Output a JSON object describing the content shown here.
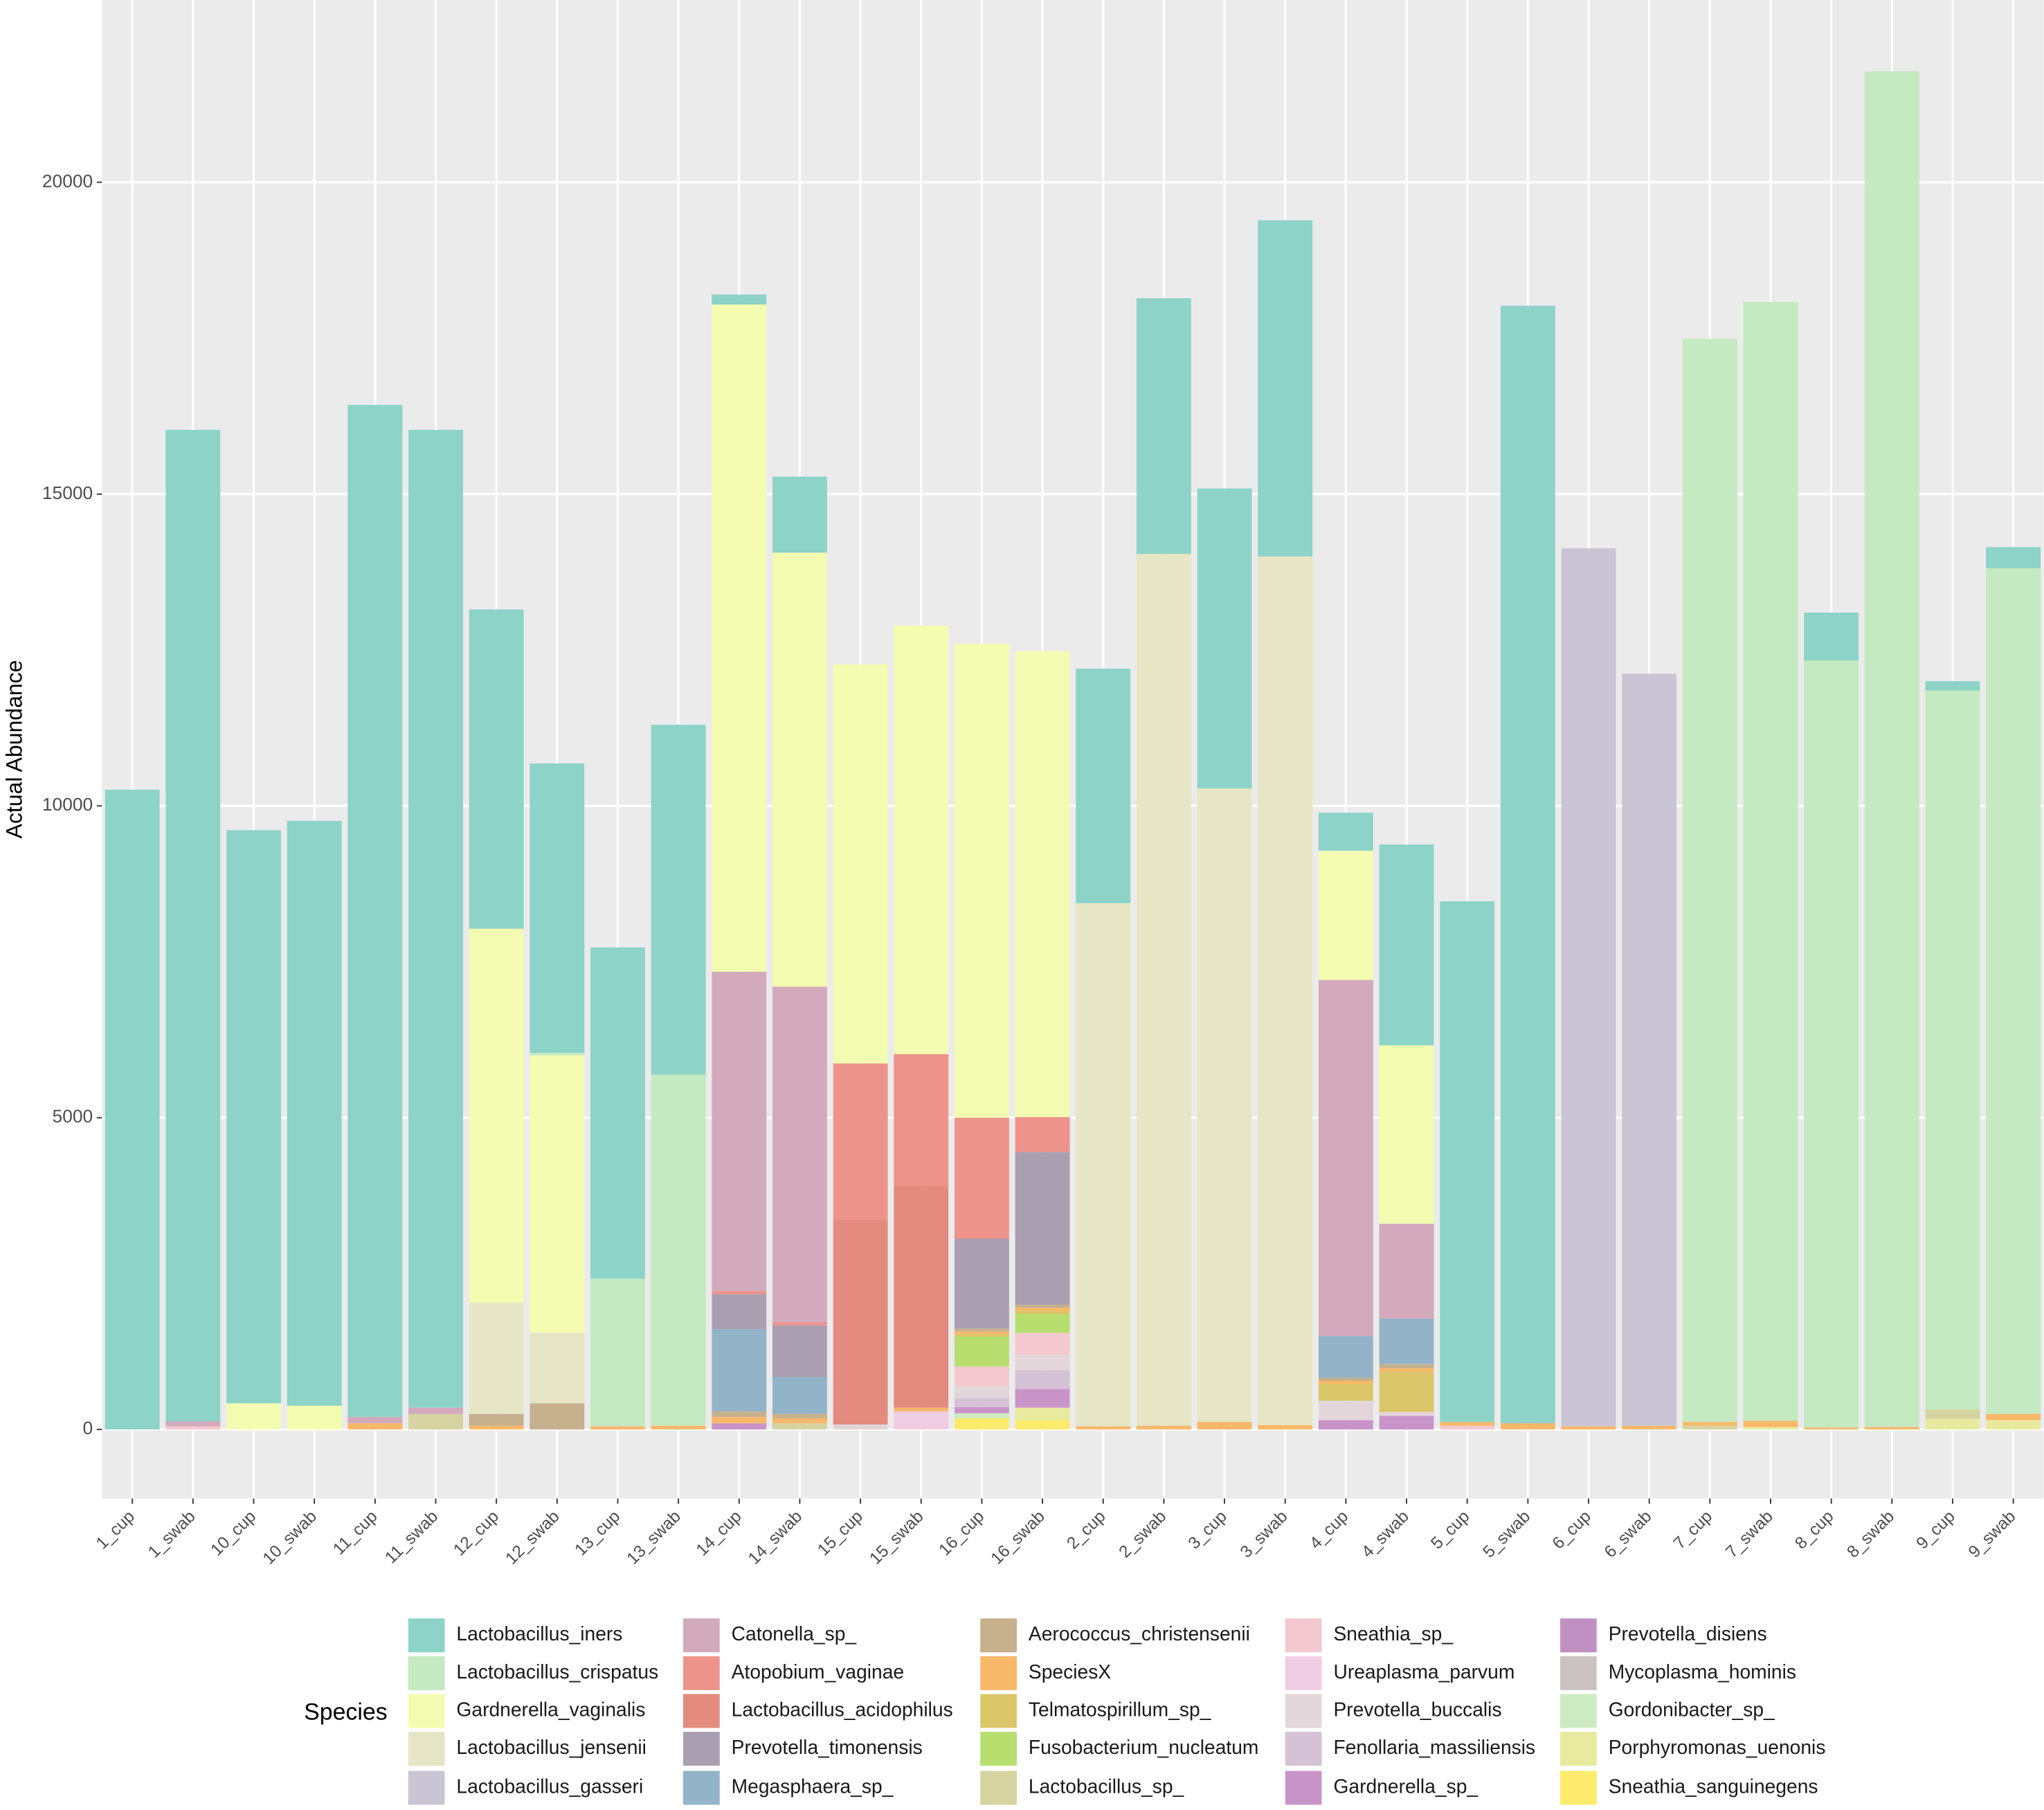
{
  "chart_data": {
    "type": "stacked_bar",
    "ylabel": "Actual Abundance",
    "legend_title": "Species",
    "ylim": [
      -1108,
      22923
    ],
    "yticks": [
      0,
      5000,
      10000,
      15000,
      20000
    ],
    "grid": true,
    "categories": [
      "1_cup",
      "1_swab",
      "10_cup",
      "10_swab",
      "11_cup",
      "11_swab",
      "12_cup",
      "12_swab",
      "13_cup",
      "13_swab",
      "14_cup",
      "14_swab",
      "15_cup",
      "15_swab",
      "16_cup",
      "16_swab",
      "2_cup",
      "2_swab",
      "3_cup",
      "3_swab",
      "4_cup",
      "4_swab",
      "5_cup",
      "5_swab",
      "6_cup",
      "6_swab",
      "7_cup",
      "7_swab",
      "8_cup",
      "8_swab",
      "9_cup",
      "9_swab"
    ],
    "series": [
      {
        "name": "Lactobacillus_iners",
        "color": "#8dd3c7",
        "values": [
          10260,
          15900,
          9190,
          9380,
          16230,
          15680,
          5120,
          4640,
          5310,
          5610,
          160,
          1220,
          0,
          0,
          0,
          0,
          3760,
          4100,
          4810,
          5390,
          610,
          3220,
          8350,
          17920,
          0,
          0,
          0,
          0,
          770,
          0,
          150,
          340
        ]
      },
      {
        "name": "Lactobacillus_crispatus",
        "color": "#c5e9c0",
        "values": [
          0,
          0,
          0,
          0,
          0,
          0,
          0,
          40,
          2370,
          5630,
          0,
          0,
          0,
          0,
          0,
          0,
          0,
          0,
          0,
          0,
          0,
          0,
          0,
          0,
          0,
          0,
          17370,
          17940,
          12300,
          21740,
          11530,
          13560
        ]
      },
      {
        "name": "Gardnerella_vaginalis",
        "color": "#f3fcb1",
        "values": [
          0,
          0,
          420,
          380,
          0,
          0,
          6000,
          4450,
          0,
          0,
          10700,
          6960,
          6400,
          6870,
          7600,
          7470,
          0,
          0,
          0,
          0,
          2070,
          2860,
          0,
          0,
          0,
          0,
          0,
          0,
          0,
          0,
          0,
          0
        ]
      },
      {
        "name": "Lactobacillus_jensenii",
        "color": "#e6e5c5",
        "values": [
          0,
          0,
          0,
          0,
          0,
          0,
          1780,
          1130,
          0,
          0,
          0,
          0,
          0,
          0,
          0,
          0,
          8390,
          13980,
          10160,
          13930,
          0,
          0,
          0,
          0,
          0,
          0,
          0,
          0,
          0,
          0,
          0,
          0
        ]
      },
      {
        "name": "Lactobacillus_gasseri",
        "color": "#c9c5d5",
        "values": [
          0,
          0,
          0,
          0,
          0,
          0,
          0,
          0,
          0,
          0,
          0,
          0,
          0,
          0,
          0,
          0,
          0,
          0,
          0,
          0,
          0,
          0,
          0,
          0,
          14080,
          12060,
          0,
          0,
          0,
          0,
          0,
          0
        ]
      },
      {
        "name": "Catonella_sp_",
        "color": "#d3a9bc",
        "values": [
          0,
          80,
          0,
          0,
          100,
          100,
          0,
          0,
          0,
          0,
          5120,
          5380,
          0,
          0,
          0,
          0,
          0,
          0,
          0,
          0,
          5710,
          1520,
          0,
          0,
          0,
          0,
          0,
          0,
          0,
          0,
          0,
          0
        ]
      },
      {
        "name": "Atopobium_vaginae",
        "color": "#ed938b",
        "values": [
          0,
          0,
          0,
          0,
          0,
          0,
          0,
          0,
          0,
          0,
          50,
          50,
          2510,
          2110,
          1940,
          560,
          0,
          0,
          0,
          0,
          0,
          0,
          0,
          0,
          0,
          0,
          0,
          0,
          0,
          0,
          0,
          0
        ]
      },
      {
        "name": "Lactobacillus_acidophilus",
        "color": "#e38b7f",
        "values": [
          0,
          0,
          0,
          0,
          0,
          0,
          0,
          0,
          0,
          0,
          0,
          0,
          3280,
          3560,
          0,
          0,
          0,
          0,
          0,
          0,
          0,
          0,
          0,
          0,
          0,
          0,
          0,
          0,
          0,
          0,
          0,
          0
        ]
      },
      {
        "name": "Prevotella_timonensis",
        "color": "#aa9fb0",
        "values": [
          0,
          0,
          0,
          0,
          0,
          0,
          0,
          0,
          0,
          0,
          560,
          830,
          0,
          0,
          1440,
          2450,
          0,
          0,
          0,
          0,
          0,
          0,
          0,
          0,
          0,
          0,
          0,
          0,
          0,
          0,
          0,
          0
        ]
      },
      {
        "name": "Megasphaera_sp_",
        "color": "#93b3c8",
        "values": [
          0,
          0,
          0,
          0,
          0,
          0,
          0,
          0,
          0,
          0,
          1320,
          590,
          0,
          0,
          0,
          0,
          0,
          0,
          0,
          0,
          670,
          730,
          0,
          0,
          0,
          0,
          0,
          0,
          0,
          0,
          0,
          0
        ]
      },
      {
        "name": "Aerococcus_christensenii",
        "color": "#c6b08e",
        "values": [
          0,
          0,
          0,
          0,
          0,
          0,
          190,
          420,
          0,
          0,
          90,
          70,
          0,
          0,
          50,
          50,
          0,
          0,
          0,
          0,
          50,
          70,
          0,
          0,
          0,
          0,
          0,
          0,
          0,
          0,
          0,
          0
        ]
      },
      {
        "name": "SpeciesX",
        "color": "#f8b869",
        "values": [
          0,
          0,
          0,
          0,
          100,
          0,
          60,
          0,
          50,
          60,
          100,
          80,
          0,
          60,
          40,
          50,
          50,
          60,
          120,
          70,
          50,
          50,
          60,
          100,
          50,
          60,
          60,
          100,
          30,
          40,
          0,
          100
        ]
      },
      {
        "name": "Telmatospirillum_sp_",
        "color": "#dbc66a",
        "values": [
          0,
          0,
          0,
          0,
          0,
          0,
          0,
          0,
          0,
          0,
          0,
          0,
          0,
          0,
          40,
          50,
          0,
          0,
          0,
          0,
          270,
          650,
          0,
          0,
          0,
          0,
          0,
          0,
          0,
          0,
          0,
          0
        ]
      },
      {
        "name": "Fusobacterium_nucleatum",
        "color": "#b8de6f",
        "values": [
          0,
          0,
          0,
          0,
          0,
          0,
          0,
          0,
          0,
          0,
          0,
          0,
          0,
          0,
          480,
          300,
          0,
          0,
          0,
          0,
          0,
          0,
          0,
          0,
          0,
          0,
          0,
          0,
          0,
          0,
          0,
          0
        ]
      },
      {
        "name": "Lactobacillus_sp_",
        "color": "#d5d3a0",
        "values": [
          0,
          0,
          0,
          0,
          0,
          250,
          0,
          0,
          0,
          0,
          0,
          100,
          0,
          0,
          0,
          0,
          0,
          0,
          0,
          0,
          0,
          0,
          0,
          0,
          0,
          0,
          60,
          0,
          0,
          0,
          150,
          0
        ]
      },
      {
        "name": "Sneathia_sp_",
        "color": "#f3c8cf",
        "values": [
          0,
          50,
          0,
          0,
          0,
          0,
          0,
          0,
          0,
          0,
          0,
          0,
          0,
          0,
          310,
          350,
          0,
          0,
          0,
          0,
          0,
          0,
          60,
          0,
          0,
          0,
          0,
          0,
          0,
          0,
          0,
          0
        ]
      },
      {
        "name": "Ureaplasma_parvum",
        "color": "#f1cde3",
        "values": [
          0,
          0,
          0,
          0,
          0,
          0,
          0,
          0,
          0,
          0,
          0,
          0,
          0,
          290,
          0,
          0,
          0,
          0,
          0,
          0,
          0,
          0,
          0,
          0,
          0,
          0,
          0,
          0,
          0,
          0,
          0,
          0
        ]
      },
      {
        "name": "Prevotella_buccalis",
        "color": "#e3d6da",
        "values": [
          0,
          0,
          0,
          0,
          0,
          0,
          0,
          0,
          0,
          0,
          0,
          0,
          80,
          0,
          200,
          250,
          0,
          0,
          0,
          0,
          310,
          60,
          0,
          0,
          0,
          0,
          0,
          0,
          0,
          0,
          0,
          0
        ]
      },
      {
        "name": "Fenollaria_massiliensis",
        "color": "#d5c2d6",
        "values": [
          0,
          0,
          0,
          0,
          0,
          0,
          0,
          0,
          0,
          0,
          0,
          0,
          0,
          0,
          140,
          300,
          0,
          0,
          0,
          0,
          0,
          0,
          0,
          0,
          0,
          0,
          0,
          0,
          0,
          0,
          0,
          0
        ]
      },
      {
        "name": "Gardnerella_sp_",
        "color": "#c995c9",
        "values": [
          0,
          0,
          0,
          0,
          0,
          0,
          0,
          0,
          0,
          0,
          100,
          0,
          0,
          0,
          100,
          300,
          0,
          0,
          0,
          0,
          150,
          220,
          0,
          0,
          0,
          0,
          0,
          0,
          0,
          0,
          0,
          0
        ]
      },
      {
        "name": "Prevotella_disiens",
        "color": "#c190c2",
        "values": [
          0,
          0,
          0,
          0,
          0,
          0,
          0,
          0,
          0,
          0,
          0,
          0,
          0,
          0,
          0,
          0,
          0,
          0,
          0,
          0,
          0,
          0,
          0,
          0,
          0,
          0,
          0,
          0,
          0,
          0,
          0,
          0
        ]
      },
      {
        "name": "Mycoplasma_hominis",
        "color": "#cbc3c3",
        "values": [
          0,
          0,
          0,
          0,
          0,
          0,
          0,
          0,
          0,
          0,
          0,
          0,
          0,
          0,
          0,
          0,
          0,
          0,
          0,
          0,
          0,
          0,
          0,
          0,
          0,
          0,
          0,
          0,
          0,
          0,
          0,
          0
        ]
      },
      {
        "name": "Gordonibacter_sp_",
        "color": "#cdebc3",
        "values": [
          0,
          0,
          0,
          0,
          0,
          0,
          0,
          0,
          0,
          0,
          0,
          0,
          0,
          0,
          80,
          0,
          0,
          0,
          0,
          0,
          0,
          0,
          0,
          0,
          0,
          0,
          0,
          0,
          0,
          0,
          0,
          0
        ]
      },
      {
        "name": "Porphyromonas_uenonis",
        "color": "#e8ea9f",
        "values": [
          0,
          0,
          0,
          0,
          0,
          0,
          0,
          0,
          0,
          0,
          0,
          0,
          0,
          0,
          0,
          200,
          0,
          0,
          0,
          0,
          0,
          0,
          0,
          0,
          0,
          0,
          0,
          40,
          0,
          0,
          170,
          150
        ]
      },
      {
        "name": "Sneathia_sanguinegens",
        "color": "#fdeb6e",
        "values": [
          0,
          0,
          0,
          0,
          0,
          0,
          0,
          0,
          0,
          0,
          0,
          0,
          0,
          0,
          180,
          150,
          0,
          0,
          0,
          0,
          0,
          0,
          0,
          0,
          0,
          0,
          0,
          0,
          0,
          0,
          0,
          0
        ]
      }
    ]
  }
}
